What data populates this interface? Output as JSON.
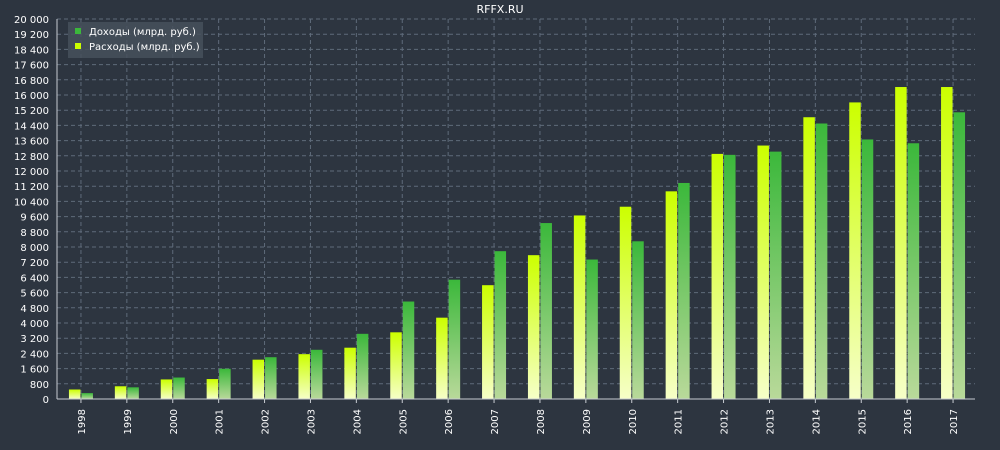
{
  "chart_data": {
    "type": "bar",
    "title": "RFFX.RU",
    "categories": [
      "1998",
      "1999",
      "2000",
      "2001",
      "2002",
      "2003",
      "2004",
      "2005",
      "2006",
      "2007",
      "2008",
      "2009",
      "2010",
      "2011",
      "2012",
      "2013",
      "2014",
      "2015",
      "2016",
      "2017"
    ],
    "series": [
      {
        "name": "Доходы (млрд. руб.)",
        "values": [
          310,
          615,
          1130,
          1590,
          2200,
          2590,
          3430,
          5130,
          6280,
          7780,
          9260,
          7340,
          8300,
          11370,
          12850,
          13020,
          14500,
          13660,
          13460,
          15090
        ]
      },
      {
        "name": "Расходы (млрд. руб.)",
        "values": [
          500,
          670,
          1030,
          1050,
          2070,
          2360,
          2700,
          3510,
          4280,
          5990,
          7570,
          9660,
          10120,
          10930,
          12900,
          13340,
          14830,
          15610,
          16420,
          16420
        ]
      }
    ],
    "ylim": [
      0,
      20000
    ],
    "yticks": [
      0,
      800,
      1600,
      2400,
      3200,
      4000,
      4800,
      5600,
      6400,
      7200,
      8000,
      8800,
      9600,
      10400,
      11200,
      12000,
      12800,
      13600,
      14400,
      15200,
      16000,
      16800,
      17600,
      18400,
      19200,
      20000
    ],
    "ytick_labels": [
      "0",
      "800",
      "1 600",
      "2 400",
      "3 200",
      "4 000",
      "4 800",
      "5 600",
      "6 400",
      "7 200",
      "8 000",
      "8 800",
      "9 600",
      "10 400",
      "11 200",
      "12 000",
      "12 800",
      "13 600",
      "14 400",
      "15 200",
      "16 000",
      "16 800",
      "17 600",
      "18 400",
      "19 200",
      "20 000"
    ],
    "grid": true,
    "legend_position": "top-left",
    "colors": {
      "background": "#2d3540",
      "grid": "#5f6b7a",
      "axis": "#c8ccd2",
      "text": "#ffffff",
      "income_top": "#3bb83b",
      "income_bottom": "#b9d99a",
      "expense_top": "#ccff00",
      "expense_bottom": "#f6ffc8"
    }
  }
}
